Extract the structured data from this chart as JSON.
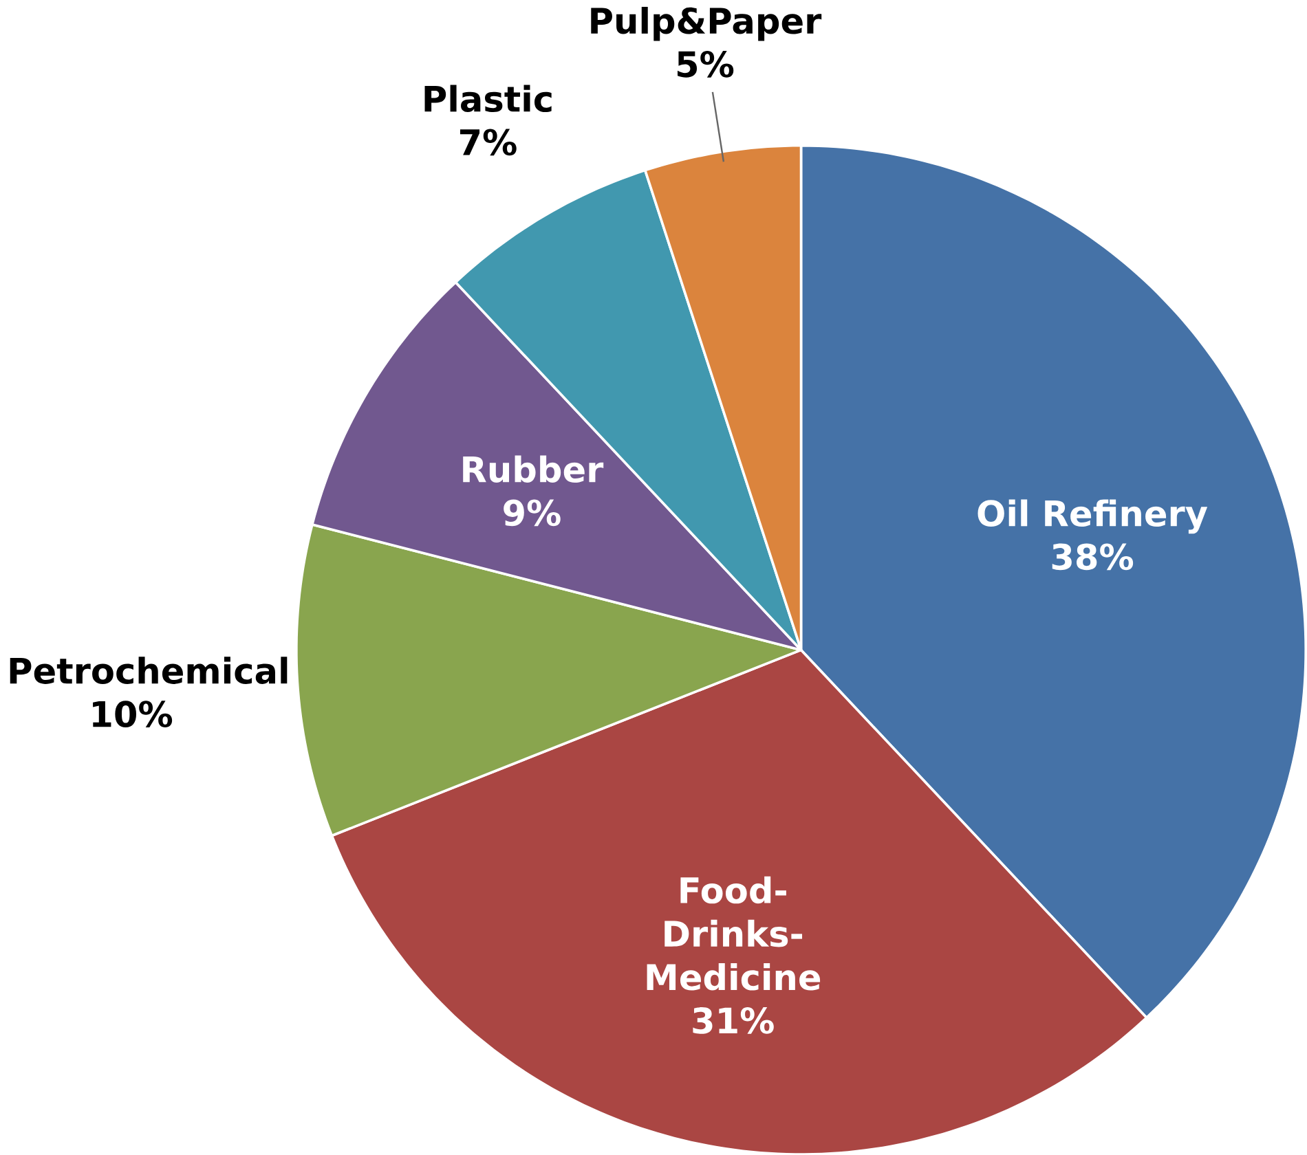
{
  "chart_data": {
    "type": "pie",
    "categories": [
      "Oil Refinery",
      "Food-Drinks-Medicine",
      "Petrochemical",
      "Rubber",
      "Plastic",
      "Pulp&Paper"
    ],
    "values": [
      38,
      31,
      10,
      9,
      7,
      5
    ],
    "value_labels": [
      "38%",
      "31%",
      "10%",
      "9%",
      "7%",
      "5%"
    ],
    "colors": [
      "#4572a7",
      "#aa4643",
      "#89a54e",
      "#71588f",
      "#4198af",
      "#db843d"
    ]
  }
}
